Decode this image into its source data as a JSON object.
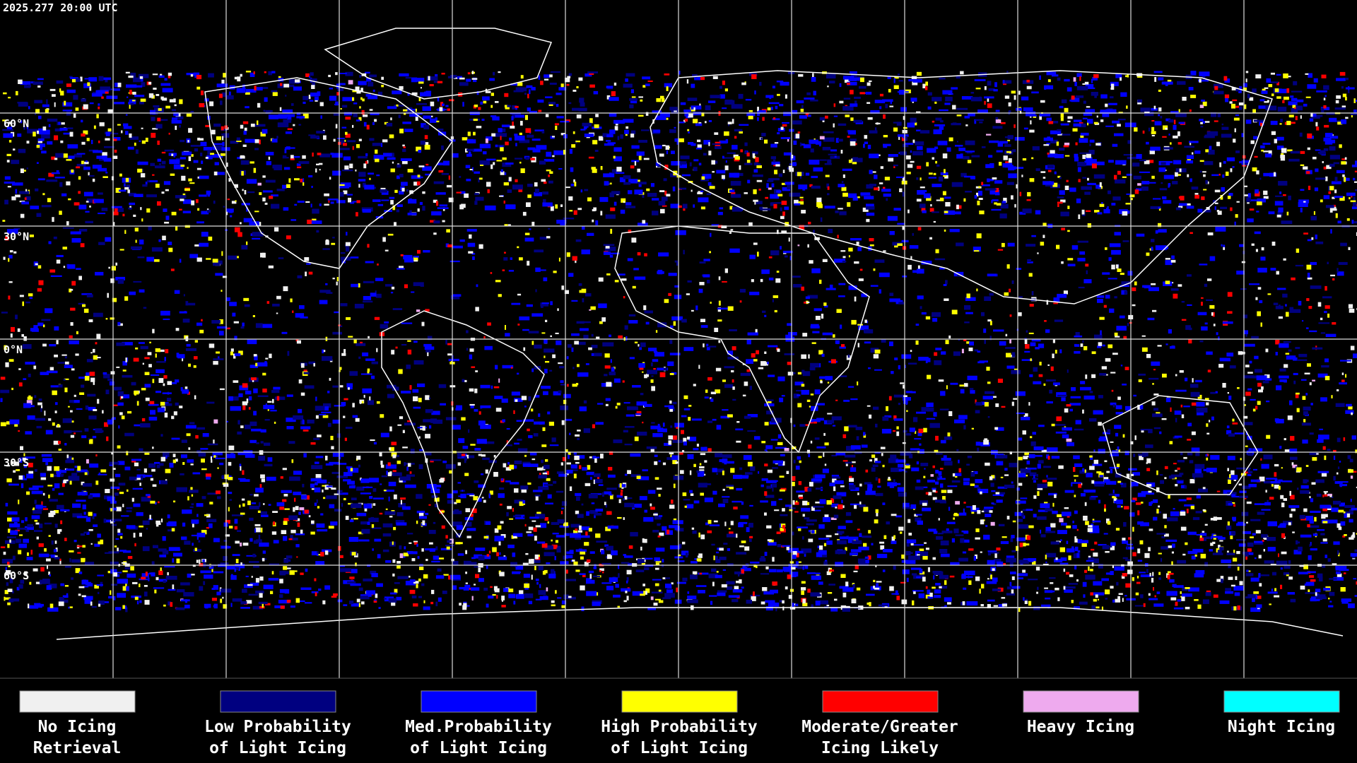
{
  "header": {
    "timestamp": "2025.277 20:00 UTC"
  },
  "map": {
    "latitude_labels": [
      "60°N",
      "30°N",
      "0°N",
      "30°S",
      "60°S"
    ]
  },
  "legend": {
    "items": [
      {
        "label": [
          "No Icing",
          "Retrieval"
        ],
        "color": "#f0f0f0"
      },
      {
        "label": [
          "Low Probability",
          "of Light Icing"
        ],
        "color": "#000080"
      },
      {
        "label": [
          "Med.Probability",
          "of Light Icing"
        ],
        "color": "#0000ff"
      },
      {
        "label": [
          "High Probability",
          "of Light Icing"
        ],
        "color": "#ffff00"
      },
      {
        "label": [
          "Moderate/Greater",
          "Icing Likely"
        ],
        "color": "#ff0000"
      },
      {
        "label": [
          "Heavy Icing"
        ],
        "color": "#eeaaee"
      },
      {
        "label": [
          "Night Icing"
        ],
        "color": "#00ffff"
      }
    ]
  }
}
